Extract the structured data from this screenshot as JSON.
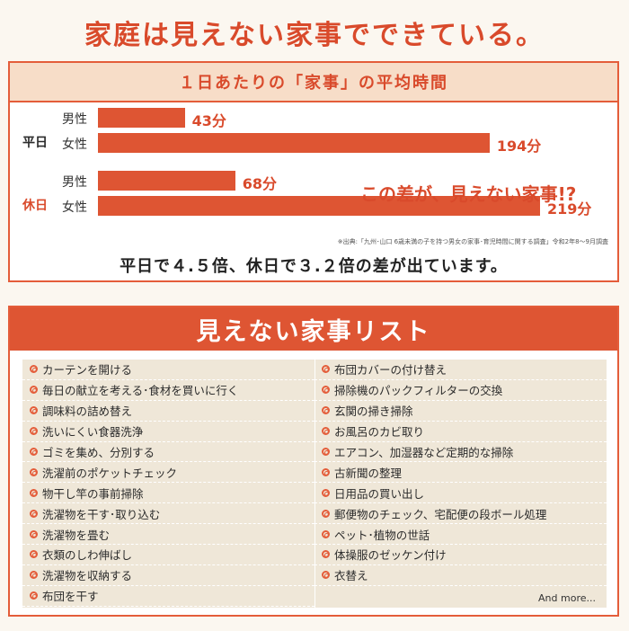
{
  "headline": "家庭は見えない家事でできている。",
  "chart_card": {
    "title": "１日あたりの「家事」の平均時間",
    "annotation": "この差が、見えない家事!?",
    "source": "※出典:「九州･山口 6歳未満の子を持つ男女の家事･育児時間に関する調査」令和2年8～9月調査",
    "summary": "平日で４.５倍、休日で３.２倍の差が出ています。"
  },
  "chart_data": {
    "type": "bar",
    "orientation": "horizontal",
    "title": "１日あたりの「家事」の平均時間",
    "unit": "分",
    "groups": [
      {
        "label": "平日",
        "color": "#2b2b2b",
        "bars": [
          {
            "label": "男性",
            "value": 43,
            "value_label": "43分"
          },
          {
            "label": "女性",
            "value": 194,
            "value_label": "194分"
          }
        ]
      },
      {
        "label": "休日",
        "color": "#d94a2b",
        "bars": [
          {
            "label": "男性",
            "value": 68,
            "value_label": "68分"
          },
          {
            "label": "女性",
            "value": 219,
            "value_label": "219分"
          }
        ]
      }
    ],
    "bar_color": "#de5533",
    "xlim": [
      0,
      219
    ],
    "grid": false
  },
  "list_card": {
    "title": "見えない家事リスト",
    "left_items": [
      "カーテンを開ける",
      "毎日の献立を考える･食材を買いに行く",
      "調味料の詰め替え",
      "洗いにくい食器洗浄",
      "ゴミを集め、分別する",
      "洗濯前のポケットチェック",
      "物干し竿の事前掃除",
      "洗濯物を干す･取り込む",
      "洗濯物を畳む",
      "衣類のしわ伸ばし",
      "洗濯物を収納する",
      "布団を干す"
    ],
    "right_items": [
      "布団カバーの付け替え",
      "掃除機のパックフィルターの交換",
      "玄関の掃き掃除",
      "お風呂のカビ取り",
      "エアコン、加湿器など定期的な掃除",
      "古新聞の整理",
      "日用品の買い出し",
      "郵便物のチェック、宅配便の段ボール処理",
      "ペット･植物の世話",
      "体操服のゼッケン付け",
      "衣替え"
    ],
    "more": "And more..."
  },
  "colors": {
    "accent": "#d94a2b",
    "bar": "#de5533",
    "list_bg": "#efe7d8",
    "header_bg": "#f7ddc8"
  }
}
